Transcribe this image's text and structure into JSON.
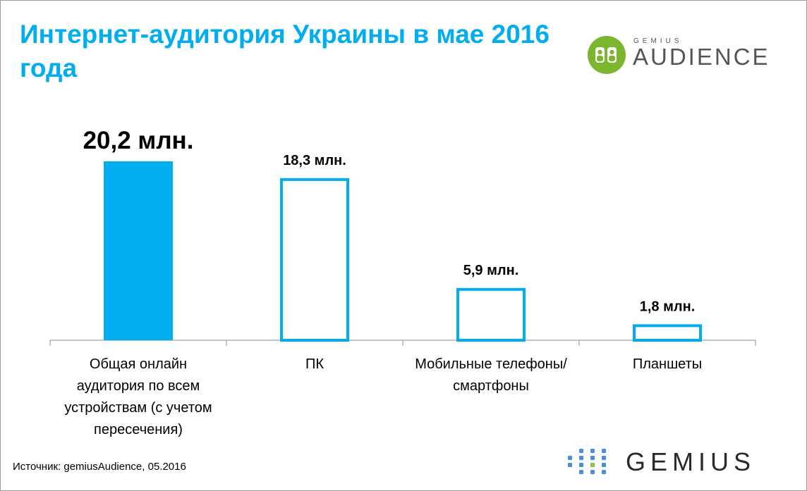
{
  "title": "Интернет-аудитория Украины в мае 2016 года",
  "logo_top": {
    "small": "GEMIUS",
    "big": "AUDIENCE"
  },
  "logo_bottom": {
    "text": "GEMIUS"
  },
  "source": "Источник: gemiusAudience, 05.2016",
  "colors": {
    "accent": "#00adef",
    "logo_green": "#7cb62f",
    "dot_blue": "#4a90d9",
    "dot_green": "#8cc63f"
  },
  "chart_data": {
    "type": "bar",
    "categories": [
      [
        "Общая онлайн",
        "аудитория по всем",
        "устройствам (с учетом",
        "пересечения)"
      ],
      [
        "ПК"
      ],
      [
        "Мобильные телефоны/",
        "смартфоны"
      ],
      [
        "Планшеты"
      ]
    ],
    "values": [
      20.2,
      18.3,
      5.9,
      1.8
    ],
    "value_labels": [
      "20,2 млн.",
      "18,3 млн.",
      "5,9 млн.",
      "1,8 млн."
    ],
    "highlighted": 0,
    "ylim": [
      0,
      20.2
    ]
  }
}
